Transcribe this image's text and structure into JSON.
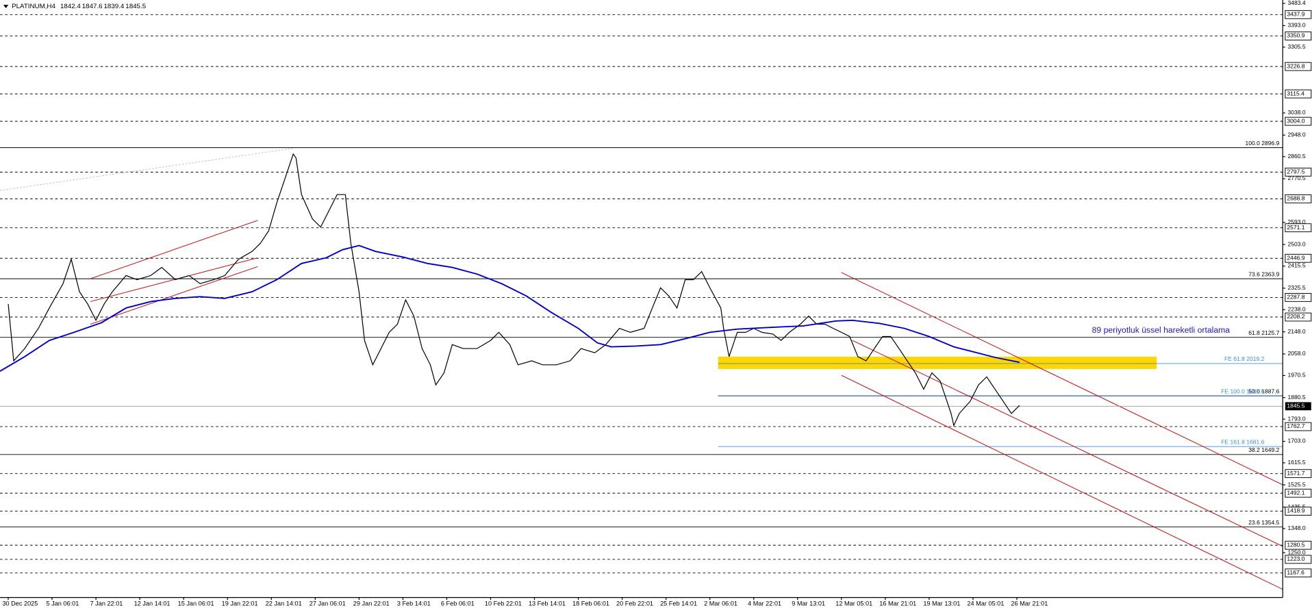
{
  "chart_data": {
    "type": "line",
    "symbol": "PLATINUM,H4",
    "ohlc": [
      1842.4,
      1847.6,
      1839.4,
      1845.5
    ],
    "xlim": [
      -3,
      465
    ],
    "ylim": [
      1068,
      3484
    ],
    "xticks": [
      {
        "value": 0,
        "label": "30 Dec 2025"
      },
      {
        "value": 16,
        "label": "5 Jan 06:01"
      },
      {
        "value": 32,
        "label": "7 Jan 22:01"
      },
      {
        "value": 48,
        "label": "12 Jan 14:01"
      },
      {
        "value": 64,
        "label": "15 Jan 06:01"
      },
      {
        "value": 80,
        "label": "19 Jan 22:01"
      },
      {
        "value": 96,
        "label": "22 Jan 14:01"
      },
      {
        "value": 112,
        "label": "27 Jan 06:01"
      },
      {
        "value": 128,
        "label": "29 Jan 22:01"
      },
      {
        "value": 144,
        "label": "3 Feb 14:01"
      },
      {
        "value": 160,
        "label": "6 Feb 06:01"
      },
      {
        "value": 176,
        "label": "10 Feb 22:01"
      },
      {
        "value": 192,
        "label": "13 Feb 14:01"
      },
      {
        "value": 208,
        "label": "18 Feb 06:01"
      },
      {
        "value": 224,
        "label": "20 Feb 22:01"
      },
      {
        "value": 240,
        "label": "25 Feb 14:01"
      },
      {
        "value": 256,
        "label": "2 Mar 06:01"
      },
      {
        "value": 272,
        "label": "4 Mar 22:01"
      },
      {
        "value": 288,
        "label": "9 Mar 13:01"
      },
      {
        "value": 304,
        "label": "12 Mar 05:01"
      },
      {
        "value": 320,
        "label": "16 Mar 21:01"
      },
      {
        "value": 336,
        "label": "19 Mar 13:01"
      },
      {
        "value": 352,
        "label": "24 Mar 05:01"
      },
      {
        "value": 368,
        "label": "26 Mar 21:01"
      }
    ],
    "yticks": [
      3483.4,
      {
        "value": 3393,
        "label": "3393.0"
      },
      3305.5,
      {
        "value": 3038,
        "label": "3038.0"
      },
      {
        "value": 2948,
        "label": "2948.0"
      },
      2860.5,
      2770.5,
      {
        "value": 2593,
        "label": "2593.0"
      },
      {
        "value": 2503,
        "label": "2503.0"
      },
      2415.5,
      2325.5,
      {
        "value": 2238,
        "label": "2238.0"
      },
      {
        "value": 2148,
        "label": "2148.0"
      },
      {
        "value": 2058,
        "label": "2058.0"
      },
      1970.5,
      1880.5,
      {
        "value": 1793,
        "label": "1793.0"
      },
      {
        "value": 1703,
        "label": "1703.0"
      },
      1615.5,
      1525.5,
      1435.5,
      {
        "value": 1348,
        "label": "1348.0"
      },
      {
        "value": 1250,
        "label": "1250.0"
      }
    ],
    "levels": [
      3437.9,
      3350.9,
      3226.8,
      3115.4,
      {
        "value": 3004,
        "label": "3004.0"
      },
      2797.5,
      2688.8,
      2571.1,
      2446.9,
      2287.8,
      2208.2,
      1762.7,
      1571.7,
      1492.1,
      1418.9,
      1280.5,
      {
        "value": 1223,
        "label": "1223.0"
      },
      1167.6
    ],
    "current_price": 1845.5,
    "fib_levels": [
      {
        "value": 2896.9,
        "label": "100.0 2896.9"
      },
      {
        "value": 2363.9,
        "label": "73.6 2363.9"
      },
      {
        "value": 2125.7,
        "label": "61.8 2125.7"
      },
      {
        "value": 1649.2,
        "label": "38.2 1649.2"
      },
      {
        "value": 1354.5,
        "label": "23.6 1354.5"
      }
    ],
    "fib_mid": {
      "value": 1887.6,
      "label": "50.0 1887.6",
      "start_x": 259,
      "color": "#000080"
    },
    "fe_levels": {
      "start_x": 259,
      "color": "#3a8fd9",
      "levels": [
        {
          "value": 2019.2,
          "label": "FE 61.8 2019.2"
        },
        {
          "value": 1887.6,
          "label": "FE 100.0 1887.6"
        },
        {
          "value": 1681.6,
          "label": "FE 161.8 1681.6"
        }
      ]
    },
    "zones": [
      {
        "x": [
          259,
          419
        ],
        "y": [
          1997,
          2047
        ],
        "color": "#ffd700"
      }
    ],
    "trendlines": [
      {
        "x": [
          30,
          91
        ],
        "y": [
          2364,
          2601
        ],
        "color": "#cc0000"
      },
      {
        "x": [
          30,
          91
        ],
        "y": [
          2271,
          2449
        ],
        "color": "#cc0000"
      },
      {
        "x": [
          30,
          91
        ],
        "y": [
          2179,
          2413
        ],
        "color": "#cc0000"
      },
      {
        "x": [
          304,
          465
        ],
        "y": [
          2389,
          1526
        ],
        "color": "#cc0000"
      },
      {
        "x": [
          308,
          465
        ],
        "y": [
          2113,
          1276
        ],
        "color": "#cc0000"
      },
      {
        "x": [
          304,
          465
        ],
        "y": [
          1971,
          1101
        ],
        "color": "#cc0000"
      },
      {
        "x": [
          -3,
          104
        ],
        "y": [
          2723,
          2894
        ],
        "color": "#bbbbbb",
        "dash": true
      }
    ],
    "annotation": "89 periyotluk üssel hareketli ortalama",
    "series": [
      {
        "color": "#000000",
        "x": [
          0,
          2,
          6,
          11,
          15,
          20,
          23,
          26,
          29,
          32,
          35,
          38,
          43,
          47,
          52,
          56,
          61,
          66,
          70,
          75,
          79,
          84,
          89,
          92,
          95,
          98,
          101,
          104,
          105,
          107,
          111,
          114,
          117,
          120,
          123,
          125,
          128,
          130,
          133,
          136,
          139,
          142,
          145,
          148,
          151,
          154,
          156,
          159,
          162,
          166,
          171,
          176,
          179,
          183,
          186,
          191,
          195,
          200,
          205,
          209,
          214,
          218,
          223,
          227,
          232,
          235,
          238,
          241,
          244,
          247,
          250,
          253,
          256,
          260,
          261,
          263,
          266,
          269,
          272,
          275,
          279,
          282,
          285,
          289,
          292,
          295,
          298,
          301,
          304,
          307,
          310,
          313,
          316,
          319,
          322,
          325,
          328,
          331,
          334,
          337,
          340,
          344,
          345,
          347,
          351,
          354,
          357,
          360,
          363,
          366,
          369
        ],
        "values": [
          2261,
          2030,
          2080,
          2162,
          2245,
          2344,
          2443,
          2311,
          2261,
          2195,
          2261,
          2311,
          2377,
          2360,
          2377,
          2410,
          2360,
          2377,
          2344,
          2360,
          2377,
          2443,
          2475,
          2508,
          2558,
          2673,
          2772,
          2871,
          2855,
          2706,
          2607,
          2574,
          2640,
          2706,
          2706,
          2508,
          2311,
          2113,
          2014,
          2080,
          2146,
          2179,
          2278,
          2212,
          2080,
          2014,
          1932,
          1981,
          2096,
          2080,
          2080,
          2113,
          2146,
          2096,
          2014,
          2030,
          2014,
          2014,
          2030,
          2080,
          2063,
          2096,
          2162,
          2146,
          2162,
          2245,
          2327,
          2294,
          2245,
          2360,
          2360,
          2393,
          2327,
          2245,
          2162,
          2047,
          2146,
          2146,
          2162,
          2146,
          2139,
          2113,
          2146,
          2179,
          2212,
          2179,
          2179,
          2162,
          2146,
          2129,
          2047,
          2030,
          2080,
          2129,
          2129,
          2080,
          2030,
          1981,
          1915,
          1981,
          1948,
          1816,
          1767,
          1816,
          1866,
          1932,
          1965,
          1915,
          1866,
          1816,
          1849
        ]
      },
      {
        "color": "#0000cc",
        "x": [
          -3,
          6,
          15,
          24,
          34,
          43,
          52,
          61,
          70,
          79,
          89,
          98,
          107,
          116,
          122,
          128,
          134,
          144,
          153,
          162,
          171,
          180,
          189,
          198,
          208,
          215,
          220,
          229,
          238,
          247,
          256,
          266,
          278,
          290,
          302,
          308,
          318,
          327,
          336,
          345,
          351,
          360,
          369
        ],
        "values": [
          1988,
          2047,
          2113,
          2146,
          2185,
          2245,
          2271,
          2284,
          2291,
          2284,
          2311,
          2360,
          2426,
          2449,
          2482,
          2499,
          2475,
          2452,
          2426,
          2410,
          2383,
          2344,
          2294,
          2228,
          2162,
          2103,
          2087,
          2090,
          2096,
          2120,
          2146,
          2159,
          2166,
          2172,
          2192,
          2195,
          2182,
          2162,
          2129,
          2087,
          2070,
          2044,
          2024
        ]
      }
    ]
  }
}
